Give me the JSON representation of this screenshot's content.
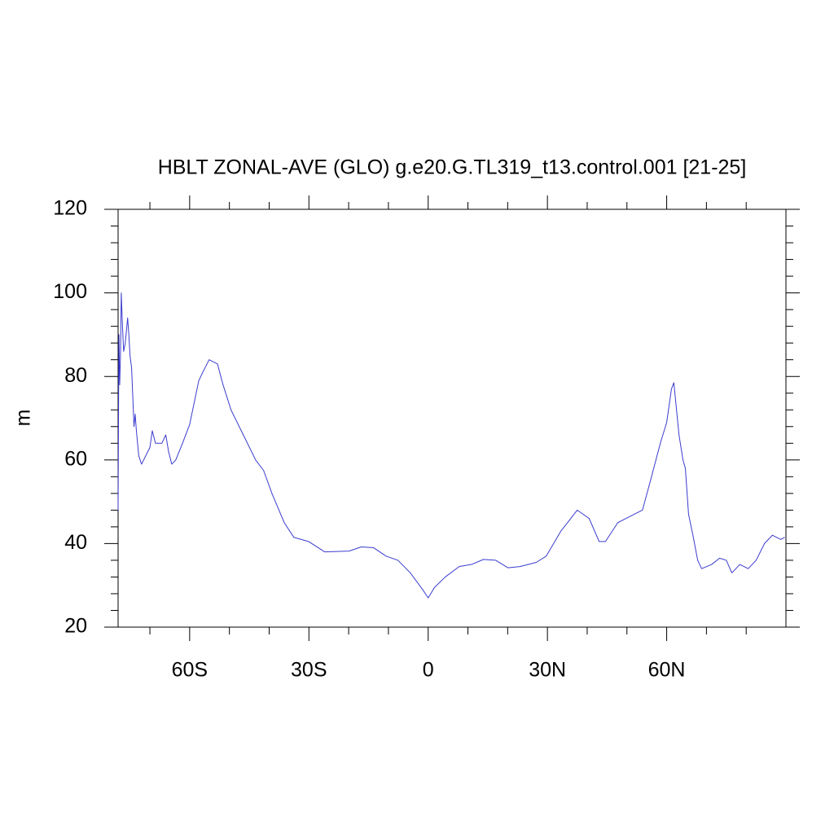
{
  "chart_data": {
    "type": "line",
    "title": "HBLT ZONAL-AVE (GLO) g.e20.G.TL319_t13.control.001 [21-25]",
    "ylabel": "m",
    "x": [
      -78,
      -77.8,
      -77.6,
      -77.4,
      -77.2,
      -76.9,
      -76.6,
      -76.2,
      -75.8,
      -75.6,
      -75.3,
      -75,
      -74.6,
      -74.3,
      -74,
      -73.7,
      -73.4,
      -72.8,
      -72.1,
      -70,
      -69.4,
      -68.6,
      -67,
      -66,
      -65.3,
      -64.5,
      -63.5,
      -61.8,
      -60,
      -57.7,
      -56.7,
      -55.1,
      -53,
      -51.6,
      -49.6,
      -46.5,
      -43.4,
      -41.4,
      -39.3,
      -36.2,
      -33.8,
      -30.1,
      -26,
      -19.9,
      -16.8,
      -13.7,
      -10.6,
      -7.6,
      -4.5,
      -1.4,
      0,
      1.6,
      4.3,
      7.8,
      10.9,
      13.9,
      17,
      20.1,
      23.1,
      27.2,
      29.7,
      33.4,
      37.5,
      40.5,
      43,
      44.6,
      47.7,
      51.8,
      53.9,
      55.9,
      58.4,
      60,
      61.2,
      61.8,
      63.1,
      64.1,
      64.7,
      65.5,
      66.6,
      67.8,
      68.8,
      71.3,
      73.3,
      75,
      76.4,
      78.4,
      80.5,
      82.5,
      84.6,
      86.6,
      88.7,
      89.7
    ],
    "series": [
      {
        "name": "HBLT",
        "color": "#3b3bd0",
        "values": [
          48,
          90,
          78,
          85,
          100,
          92,
          86,
          88,
          92,
          94,
          90,
          85,
          82,
          75,
          68,
          71,
          67,
          61,
          59,
          63,
          67,
          64,
          64,
          66,
          62,
          59,
          60,
          64,
          68.5,
          79,
          81,
          84,
          83,
          78,
          72,
          66,
          60,
          57.5,
          52,
          45,
          41.5,
          40.5,
          38,
          38.2,
          39.2,
          39,
          37,
          36,
          33,
          29,
          27,
          29.5,
          32,
          34.5,
          35,
          36.2,
          36,
          34.2,
          34.5,
          35.5,
          37,
          43,
          48,
          46,
          40.5,
          40.5,
          45,
          47,
          48,
          55,
          64,
          69,
          77,
          78.5,
          66,
          60,
          58,
          47,
          42,
          36,
          34,
          35,
          36.5,
          36,
          33,
          35,
          34,
          36,
          40,
          42,
          41,
          41.5
        ]
      }
    ],
    "xlim": [
      -78,
      90
    ],
    "ylim": [
      20,
      120
    ],
    "xticks": [
      {
        "value": -60,
        "label": "60S"
      },
      {
        "value": -30,
        "label": "30S"
      },
      0,
      {
        "value": 30,
        "label": "30N"
      },
      {
        "value": 60,
        "label": "60N"
      }
    ],
    "xminorticks": [
      -70,
      -50,
      -40,
      -20,
      -10,
      10,
      20,
      40,
      50,
      70,
      80
    ],
    "yticks": [
      20,
      40,
      60,
      80,
      100,
      120
    ],
    "yminorticks": [
      24,
      28,
      32,
      36,
      44,
      48,
      52,
      56,
      64,
      68,
      72,
      76,
      84,
      88,
      92,
      96,
      104,
      108,
      112,
      116
    ]
  }
}
